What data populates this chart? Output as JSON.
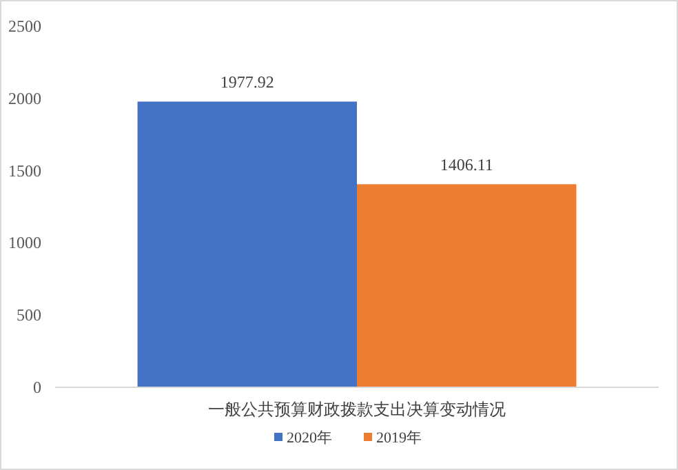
{
  "chart_data": {
    "type": "bar",
    "categories": [
      "一般公共预算财政拨款支出决算变动情况"
    ],
    "series": [
      {
        "name": "2020年",
        "color": "#4472c4",
        "values": [
          1977.92
        ]
      },
      {
        "name": "2019年",
        "color": "#ed7d31",
        "values": [
          1406.11
        ]
      }
    ],
    "ylim": [
      0,
      2500
    ],
    "yticks": [
      0,
      500,
      1000,
      1500,
      2000,
      2500
    ],
    "data_labels": true,
    "legend": "bottom"
  }
}
